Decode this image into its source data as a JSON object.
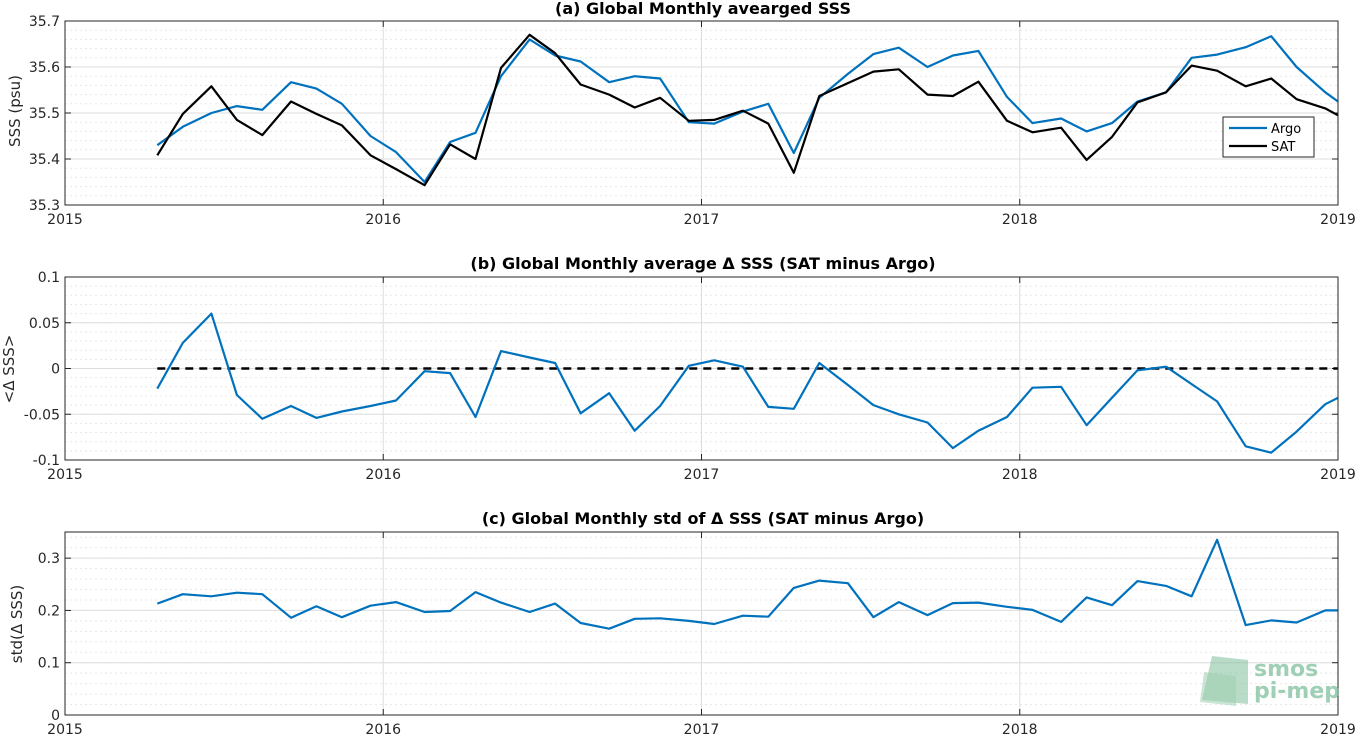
{
  "colors": {
    "argo": "#0072bd",
    "sat": "#000000",
    "grid": "#dddddd",
    "watermark": "#7fbf9b"
  },
  "watermark": {
    "line1": "smos",
    "line2": "pi-mep"
  },
  "chart_data": [
    {
      "type": "line",
      "title": "(a) Global Monthly avearged SSS",
      "ylabel": "SSS (psu)",
      "xlim": [
        2015,
        2019
      ],
      "ylim": [
        35.3,
        35.7
      ],
      "xticks": [
        "2015",
        "2016",
        "2017",
        "2018",
        "2019"
      ],
      "yticks": [
        "35.3",
        "35.4",
        "35.5",
        "35.6",
        "35.7"
      ],
      "ytick_values": [
        35.3,
        35.4,
        35.5,
        35.6,
        35.7
      ],
      "grid": true,
      "legend": "right",
      "x": [
        2015.29,
        2015.37,
        2015.46,
        2015.54,
        2015.62,
        2015.71,
        2015.79,
        2015.87,
        2015.96,
        2016.04,
        2016.13,
        2016.21,
        2016.29,
        2016.37,
        2016.46,
        2016.54,
        2016.62,
        2016.71,
        2016.79,
        2016.87,
        2016.96,
        2017.04,
        2017.13,
        2017.21,
        2017.29,
        2017.37,
        2017.46,
        2017.54,
        2017.62,
        2017.71,
        2017.79,
        2017.87,
        2017.96,
        2018.04,
        2018.13,
        2018.21,
        2018.29,
        2018.37,
        2018.46,
        2018.54,
        2018.62,
        2018.71,
        2018.79,
        2018.87,
        2018.96,
        2019.0
      ],
      "series": [
        {
          "name": "Argo",
          "color": "#0072bd",
          "values": [
            35.43,
            35.47,
            35.5,
            35.515,
            35.507,
            35.567,
            35.553,
            35.52,
            35.45,
            35.415,
            35.35,
            35.437,
            35.457,
            35.58,
            35.66,
            35.625,
            35.612,
            35.567,
            35.58,
            35.575,
            35.48,
            35.477,
            35.503,
            35.52,
            35.413,
            35.533,
            35.585,
            35.628,
            35.642,
            35.6,
            35.625,
            35.635,
            35.535,
            35.478,
            35.488,
            35.46,
            35.478,
            35.525,
            35.545,
            35.62,
            35.627,
            35.643,
            35.667,
            35.6,
            35.545,
            35.525
          ]
        },
        {
          "name": "SAT",
          "color": "#000000",
          "values": [
            35.408,
            35.498,
            35.558,
            35.485,
            35.452,
            35.525,
            35.498,
            35.473,
            35.408,
            35.378,
            35.343,
            35.432,
            35.4,
            35.598,
            35.67,
            35.63,
            35.562,
            35.54,
            35.512,
            35.533,
            35.483,
            35.485,
            35.505,
            35.477,
            35.37,
            35.537,
            35.565,
            35.59,
            35.595,
            35.54,
            35.537,
            35.568,
            35.483,
            35.458,
            35.468,
            35.398,
            35.448,
            35.523,
            35.545,
            35.603,
            35.592,
            35.558,
            35.575,
            35.53,
            35.51,
            35.495
          ]
        }
      ]
    },
    {
      "type": "line",
      "title": "(b) Global Monthly average Δ SSS (SAT minus Argo)",
      "ylabel": "<Δ SSS>",
      "xlim": [
        2015,
        2019
      ],
      "ylim": [
        -0.1,
        0.1
      ],
      "xticks": [
        "2015",
        "2016",
        "2017",
        "2018",
        "2019"
      ],
      "yticks": [
        "-0.1",
        "-0.05",
        "0",
        "0.05",
        "0.1"
      ],
      "ytick_values": [
        -0.1,
        -0.05,
        0,
        0.05,
        0.1
      ],
      "grid": true,
      "reference_line": {
        "y": 0,
        "style": "dashed",
        "color": "#000000",
        "x_from": 2015.29,
        "x_to": 2019.0
      },
      "x": [
        2015.29,
        2015.37,
        2015.46,
        2015.54,
        2015.62,
        2015.71,
        2015.79,
        2015.87,
        2015.96,
        2016.04,
        2016.13,
        2016.21,
        2016.29,
        2016.37,
        2016.46,
        2016.54,
        2016.62,
        2016.71,
        2016.79,
        2016.87,
        2016.96,
        2017.04,
        2017.13,
        2017.21,
        2017.29,
        2017.37,
        2017.46,
        2017.54,
        2017.62,
        2017.71,
        2017.79,
        2017.87,
        2017.96,
        2018.04,
        2018.13,
        2018.21,
        2018.29,
        2018.37,
        2018.46,
        2018.54,
        2018.62,
        2018.71,
        2018.79,
        2018.87,
        2018.96,
        2019.0
      ],
      "series": [
        {
          "name": "",
          "color": "#0072bd",
          "values": [
            -0.022,
            0.028,
            0.06,
            -0.029,
            -0.055,
            -0.041,
            -0.054,
            -0.047,
            -0.041,
            -0.035,
            -0.003,
            -0.005,
            -0.053,
            0.019,
            0.012,
            0.006,
            -0.049,
            -0.027,
            -0.068,
            -0.041,
            0.003,
            0.009,
            0.002,
            -0.042,
            -0.044,
            0.006,
            -0.018,
            -0.04,
            -0.05,
            -0.059,
            -0.087,
            -0.068,
            -0.053,
            -0.021,
            -0.02,
            -0.062,
            -0.032,
            -0.002,
            0.002,
            -0.017,
            -0.036,
            -0.085,
            -0.092,
            -0.069,
            -0.039,
            -0.032
          ]
        }
      ]
    },
    {
      "type": "line",
      "title": "(c) Global Monthly std of Δ SSS (SAT minus Argo)",
      "ylabel": "std(Δ SSS)",
      "xlim": [
        2015,
        2019
      ],
      "ylim": [
        0,
        0.35
      ],
      "xticks": [
        "2015",
        "2016",
        "2017",
        "2018",
        "2019"
      ],
      "yticks": [
        "0",
        "0.1",
        "0.2",
        "0.3"
      ],
      "ytick_values": [
        0,
        0.1,
        0.2,
        0.3
      ],
      "grid": true,
      "x": [
        2015.29,
        2015.37,
        2015.46,
        2015.54,
        2015.62,
        2015.71,
        2015.79,
        2015.87,
        2015.96,
        2016.04,
        2016.13,
        2016.21,
        2016.29,
        2016.37,
        2016.46,
        2016.54,
        2016.62,
        2016.71,
        2016.79,
        2016.87,
        2016.96,
        2017.04,
        2017.13,
        2017.21,
        2017.29,
        2017.37,
        2017.46,
        2017.54,
        2017.62,
        2017.71,
        2017.79,
        2017.87,
        2017.96,
        2018.04,
        2018.13,
        2018.21,
        2018.29,
        2018.37,
        2018.46,
        2018.54,
        2018.62,
        2018.71,
        2018.79,
        2018.87,
        2018.96,
        2019.0
      ],
      "series": [
        {
          "name": "",
          "color": "#0072bd",
          "values": [
            0.213,
            0.231,
            0.227,
            0.234,
            0.231,
            0.186,
            0.208,
            0.187,
            0.209,
            0.216,
            0.197,
            0.199,
            0.235,
            0.215,
            0.197,
            0.213,
            0.176,
            0.165,
            0.184,
            0.185,
            0.18,
            0.174,
            0.19,
            0.188,
            0.243,
            0.257,
            0.252,
            0.187,
            0.216,
            0.191,
            0.214,
            0.215,
            0.207,
            0.201,
            0.178,
            0.225,
            0.21,
            0.256,
            0.247,
            0.227,
            0.335,
            0.172,
            0.181,
            0.177,
            0.2,
            0.2
          ]
        }
      ]
    }
  ]
}
